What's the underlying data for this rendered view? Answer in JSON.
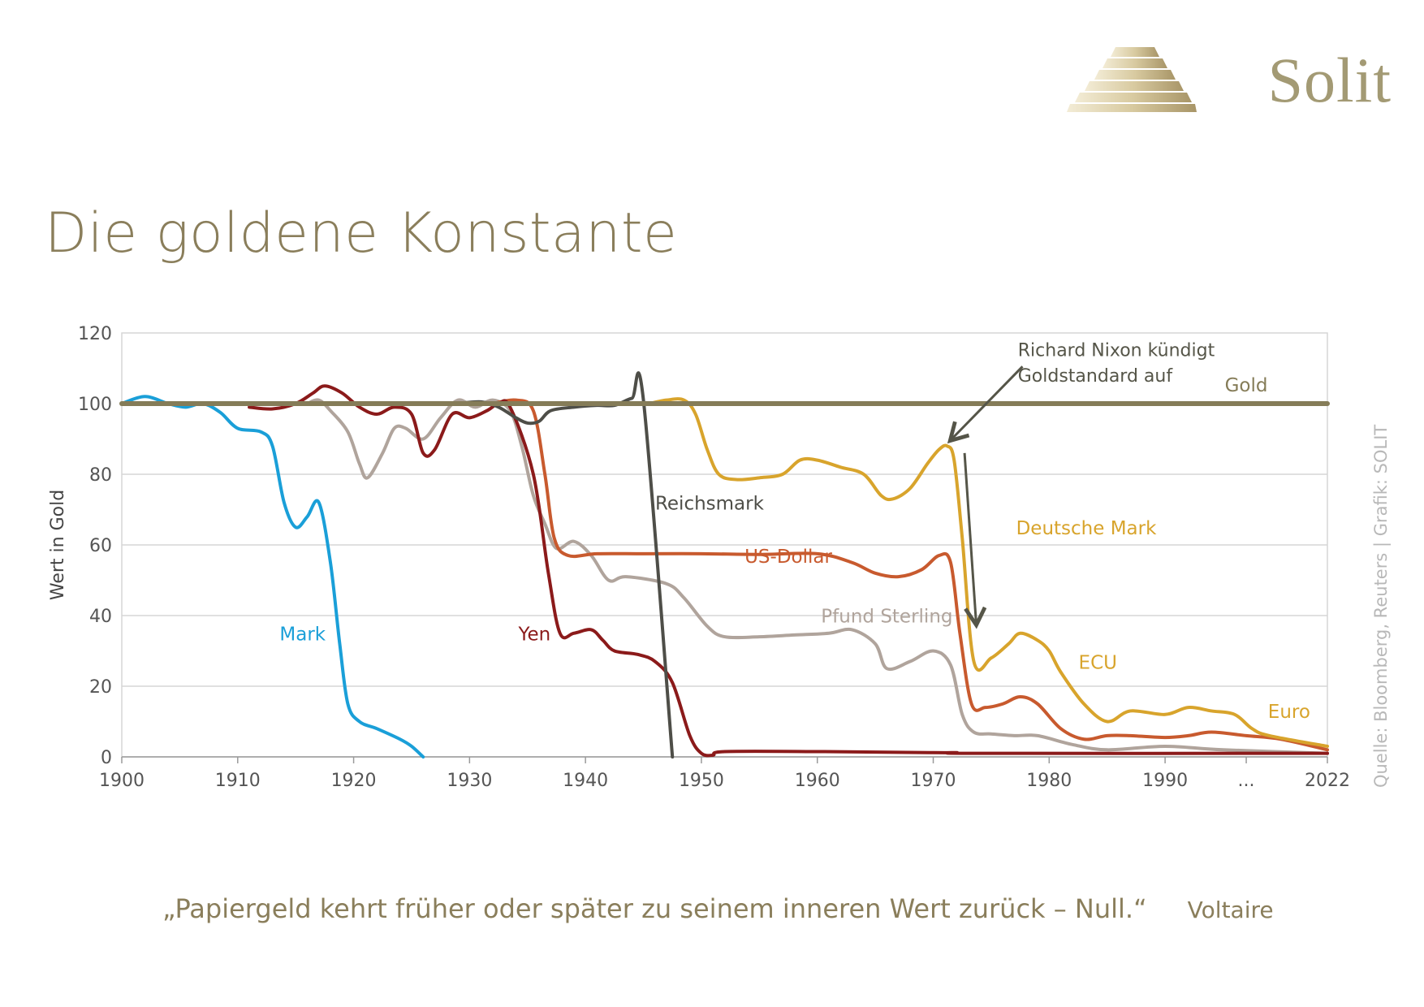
{
  "brand": {
    "name": "Solit",
    "logo_icon": "stepped-pyramid-icon"
  },
  "page": {
    "title": "Die goldene Konstante",
    "quote": "„Papiergeld kehrt früher oder später zu seinem inneren Wert zurück – Null.“",
    "quote_author": "Voltaire",
    "source": "Quelle: Bloomberg, Reuters | Grafik: SOLIT"
  },
  "chart_data": {
    "type": "line",
    "title": "",
    "xlabel": "",
    "ylabel": "Wert in Gold",
    "xlim": [
      1900,
      2004
    ],
    "ylim": [
      0,
      120
    ],
    "yticks": [
      0,
      20,
      40,
      60,
      80,
      100,
      120
    ],
    "xticks": [
      {
        "x": 1900,
        "label": "1900"
      },
      {
        "x": 1910,
        "label": "1910"
      },
      {
        "x": 1920,
        "label": "1920"
      },
      {
        "x": 1930,
        "label": "1930"
      },
      {
        "x": 1940,
        "label": "1940"
      },
      {
        "x": 1950,
        "label": "1950"
      },
      {
        "x": 1960,
        "label": "1960"
      },
      {
        "x": 1970,
        "label": "1970"
      },
      {
        "x": 1980,
        "label": "1980"
      },
      {
        "x": 1990,
        "label": "1990"
      },
      {
        "x": 1997,
        "label": "..."
      },
      {
        "x": 2004,
        "label": "2022"
      }
    ],
    "grid": true,
    "series": [
      {
        "name": "Gold",
        "color": "#857c58",
        "width": 6,
        "label_at": [
          1997,
          103.5
        ],
        "points": [
          [
            1900,
            100
          ],
          [
            2004,
            100
          ]
        ]
      },
      {
        "name": "Mark",
        "color": "#1a9fd8",
        "width": 4,
        "label_at": [
          1915.6,
          33
        ],
        "points": [
          [
            1900,
            100
          ],
          [
            1902,
            102
          ],
          [
            1904,
            100
          ],
          [
            1905.5,
            99
          ],
          [
            1907,
            100
          ],
          [
            1908.5,
            97.5
          ],
          [
            1910,
            93
          ],
          [
            1912,
            92
          ],
          [
            1913,
            88
          ],
          [
            1914,
            72
          ],
          [
            1915,
            65
          ],
          [
            1916,
            68
          ],
          [
            1917,
            72
          ],
          [
            1918,
            55
          ],
          [
            1918.8,
            32
          ],
          [
            1919.5,
            15
          ],
          [
            1920.5,
            10
          ],
          [
            1922,
            8
          ],
          [
            1924,
            5
          ],
          [
            1925,
            3
          ],
          [
            1926,
            0
          ]
        ]
      },
      {
        "name": "Pfund Sterling",
        "color": "#b0a49c",
        "width": 4,
        "label_at": [
          1966,
          38
        ],
        "points": [
          [
            1916,
            100
          ],
          [
            1917,
            101
          ],
          [
            1918,
            98
          ],
          [
            1919.5,
            92
          ],
          [
            1920.5,
            83
          ],
          [
            1921.2,
            79
          ],
          [
            1922.5,
            86
          ],
          [
            1923.5,
            93
          ],
          [
            1924.5,
            93
          ],
          [
            1926,
            90
          ],
          [
            1927.5,
            96
          ],
          [
            1929,
            101
          ],
          [
            1930.5,
            99
          ],
          [
            1932,
            101
          ],
          [
            1933.5,
            98
          ],
          [
            1934.5,
            88
          ],
          [
            1935.5,
            74
          ],
          [
            1936.5,
            66
          ],
          [
            1937.5,
            59
          ],
          [
            1939,
            61
          ],
          [
            1940.5,
            57
          ],
          [
            1942,
            50
          ],
          [
            1943.5,
            51
          ],
          [
            1947,
            49
          ],
          [
            1948.5,
            45
          ],
          [
            1950.5,
            37
          ],
          [
            1952,
            34
          ],
          [
            1955,
            34
          ],
          [
            1958,
            34.5
          ],
          [
            1961,
            35
          ],
          [
            1963,
            36
          ],
          [
            1965,
            32
          ],
          [
            1966,
            25
          ],
          [
            1968,
            27
          ],
          [
            1970,
            30
          ],
          [
            1971.5,
            26
          ],
          [
            1972.5,
            12
          ],
          [
            1973.5,
            7
          ],
          [
            1975,
            6.5
          ],
          [
            1977,
            6
          ],
          [
            1979,
            6
          ],
          [
            1982,
            3.5
          ],
          [
            1985,
            2
          ],
          [
            1990,
            3
          ],
          [
            1995,
            2
          ],
          [
            2004,
            1
          ]
        ]
      },
      {
        "name": "US-Dollar",
        "color": "#c85a2e",
        "width": 4,
        "label_at": [
          1957.5,
          55
        ],
        "points": [
          [
            1932,
            100
          ],
          [
            1934,
            101
          ],
          [
            1935.5,
            98
          ],
          [
            1936.5,
            80
          ],
          [
            1937.3,
            62
          ],
          [
            1938.5,
            57
          ],
          [
            1941,
            57.5
          ],
          [
            1945,
            57.5
          ],
          [
            1950,
            57.5
          ],
          [
            1955,
            57.3
          ],
          [
            1960,
            57.5
          ],
          [
            1963,
            55
          ],
          [
            1965,
            52
          ],
          [
            1967,
            51
          ],
          [
            1969,
            53
          ],
          [
            1970.5,
            57
          ],
          [
            1971.5,
            55
          ],
          [
            1972.3,
            35
          ],
          [
            1973.3,
            15
          ],
          [
            1974.5,
            14
          ],
          [
            1976,
            15
          ],
          [
            1977.5,
            17
          ],
          [
            1979,
            15
          ],
          [
            1981,
            8
          ],
          [
            1983,
            5
          ],
          [
            1985,
            6
          ],
          [
            1987,
            6
          ],
          [
            1990,
            5.5
          ],
          [
            1992,
            6
          ],
          [
            1994,
            7
          ],
          [
            1997,
            6
          ],
          [
            2000,
            5
          ],
          [
            2004,
            2
          ]
        ]
      },
      {
        "name": "Yen",
        "color": "#8b1a1a",
        "width": 4,
        "label_at": [
          1935.6,
          33
        ],
        "points": [
          [
            1911,
            99
          ],
          [
            1913,
            98.5
          ],
          [
            1915,
            100
          ],
          [
            1916.5,
            103
          ],
          [
            1917.5,
            105
          ],
          [
            1919,
            103
          ],
          [
            1920.5,
            99
          ],
          [
            1922,
            97
          ],
          [
            1923.5,
            99
          ],
          [
            1925,
            97
          ],
          [
            1926,
            86
          ],
          [
            1927,
            87
          ],
          [
            1928.5,
            97
          ],
          [
            1930,
            96
          ],
          [
            1931.5,
            98
          ],
          [
            1932.5,
            100
          ],
          [
            1933.5,
            99
          ],
          [
            1935.5,
            80
          ],
          [
            1936.8,
            52
          ],
          [
            1937.8,
            35
          ],
          [
            1939,
            35
          ],
          [
            1940.5,
            36
          ],
          [
            1941.5,
            33
          ],
          [
            1942.5,
            30
          ],
          [
            1944.5,
            29
          ],
          [
            1946,
            27
          ],
          [
            1947.5,
            21
          ],
          [
            1949,
            6
          ],
          [
            1950,
            1
          ],
          [
            1951,
            0.5
          ],
          [
            1952,
            1.5
          ],
          [
            1960,
            1.5
          ],
          [
            1970,
            1.2
          ],
          [
            1972,
            1.2
          ],
          [
            1974,
            1
          ],
          [
            2004,
            1
          ]
        ]
      },
      {
        "name": "Reichsmark",
        "color": "#4e4e48",
        "width": 4,
        "label_at": [
          1950.7,
          70
        ],
        "points": [
          [
            1929,
            100
          ],
          [
            1931,
            100.5
          ],
          [
            1932.5,
            99
          ],
          [
            1934,
            96
          ],
          [
            1935,
            94.5
          ],
          [
            1936,
            95
          ],
          [
            1937,
            98
          ],
          [
            1939,
            99
          ],
          [
            1941,
            99.5
          ],
          [
            1942.5,
            99.5
          ],
          [
            1944,
            101.5
          ],
          [
            1945,
            101
          ],
          [
            1947.5,
            0
          ]
        ]
      },
      {
        "name": "Deutsche Mark",
        "color": "#d8a42c",
        "width": 4,
        "label_at": [
          1983.2,
          63
        ],
        "points": [
          [
            1945.5,
            100
          ],
          [
            1947,
            101
          ],
          [
            1948.5,
            101
          ],
          [
            1949.5,
            97
          ],
          [
            1950.5,
            87
          ],
          [
            1951.5,
            80
          ],
          [
            1953,
            78.5
          ],
          [
            1955,
            79
          ],
          [
            1957,
            80
          ],
          [
            1958.5,
            84
          ],
          [
            1960,
            84
          ],
          [
            1962,
            82
          ],
          [
            1964,
            80
          ],
          [
            1965.5,
            74
          ],
          [
            1966.5,
            73
          ],
          [
            1968,
            76
          ],
          [
            1969.5,
            83
          ],
          [
            1970.5,
            87
          ],
          [
            1971.2,
            88
          ],
          [
            1971.8,
            84
          ],
          [
            1972.5,
            62
          ],
          [
            1973.5,
            27
          ],
          [
            1975,
            28
          ],
          [
            1976.5,
            32
          ],
          [
            1977.5,
            35
          ],
          [
            1979,
            33
          ],
          [
            1980,
            30
          ],
          [
            1981,
            24
          ],
          [
            1983,
            15
          ],
          [
            1985,
            10
          ],
          [
            1987,
            13
          ],
          [
            1990,
            12
          ],
          [
            1992,
            14
          ],
          [
            1994,
            13
          ],
          [
            1996,
            12
          ],
          [
            1997.5,
            8
          ],
          [
            1999,
            6
          ],
          [
            2004,
            3
          ]
        ]
      }
    ],
    "segment_labels": [
      {
        "text": "ECU",
        "color": "#d8a42c",
        "at": [
          1984.2,
          25
        ]
      },
      {
        "text": "Euro",
        "color": "#d8a42c",
        "at": [
          2000.7,
          11
        ]
      }
    ],
    "annotations": [
      {
        "text_lines": [
          "Richard Nixon kündigt",
          "Goldstandard auf"
        ],
        "color": "#555548"
      }
    ]
  }
}
